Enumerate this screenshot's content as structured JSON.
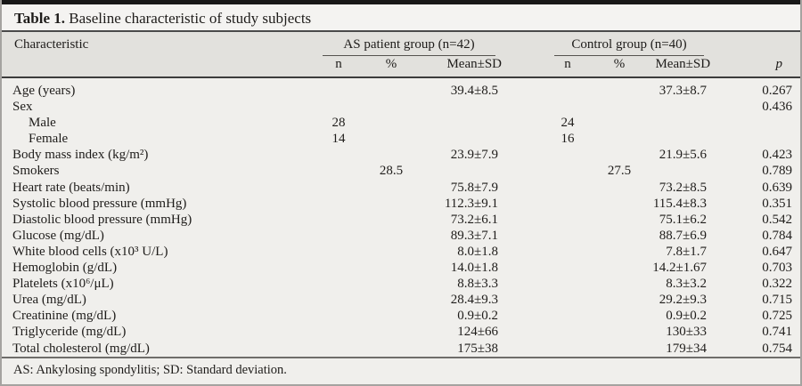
{
  "title": {
    "label": "Table 1.",
    "text": " Baseline characteristic of study subjects"
  },
  "table": {
    "characteristic_header": "Characteristic",
    "groups": [
      {
        "name": "AS patient group (n=42)",
        "subheaders": [
          "n",
          "%",
          "Mean±SD"
        ]
      },
      {
        "name": "Control group (n=40)",
        "subheaders": [
          "n",
          "%",
          "Mean±SD"
        ]
      }
    ],
    "p_header": "p",
    "rows": [
      {
        "label": "Age (years)",
        "indent": false,
        "as_n": "",
        "as_pct": "",
        "as_mean": "39.4±8.5",
        "c_n": "",
        "c_pct": "",
        "c_mean": "37.3±8.7",
        "p": "0.267"
      },
      {
        "label": "Sex",
        "indent": false,
        "as_n": "",
        "as_pct": "",
        "as_mean": "",
        "c_n": "",
        "c_pct": "",
        "c_mean": "",
        "p": "0.436"
      },
      {
        "label": "Male",
        "indent": true,
        "as_n": "28",
        "as_pct": "",
        "as_mean": "",
        "c_n": "24",
        "c_pct": "",
        "c_mean": "",
        "p": ""
      },
      {
        "label": "Female",
        "indent": true,
        "as_n": "14",
        "as_pct": "",
        "as_mean": "",
        "c_n": "16",
        "c_pct": "",
        "c_mean": "",
        "p": ""
      },
      {
        "label": "Body mass index (kg/m²)",
        "indent": false,
        "as_n": "",
        "as_pct": "",
        "as_mean": "23.9±7.9",
        "c_n": "",
        "c_pct": "",
        "c_mean": "21.9±5.6",
        "p": "0.423"
      },
      {
        "label": "Smokers",
        "indent": false,
        "as_n": "",
        "as_pct": "28.5",
        "as_mean": "",
        "c_n": "",
        "c_pct": "27.5",
        "c_mean": "",
        "p": "0.789"
      },
      {
        "label": "Heart rate (beats/min)",
        "indent": false,
        "as_n": "",
        "as_pct": "",
        "as_mean": "75.8±7.9",
        "c_n": "",
        "c_pct": "",
        "c_mean": "73.2±8.5",
        "p": "0.639"
      },
      {
        "label": "Systolic blood pressure (mmHg)",
        "indent": false,
        "as_n": "",
        "as_pct": "",
        "as_mean": "112.3±9.1",
        "c_n": "",
        "c_pct": "",
        "c_mean": "115.4±8.3",
        "p": "0.351"
      },
      {
        "label": "Diastolic blood pressure (mmHg)",
        "indent": false,
        "as_n": "",
        "as_pct": "",
        "as_mean": "73.2±6.1",
        "c_n": "",
        "c_pct": "",
        "c_mean": "75.1±6.2",
        "p": "0.542"
      },
      {
        "label": "Glucose (mg/dL)",
        "indent": false,
        "as_n": "",
        "as_pct": "",
        "as_mean": "89.3±7.1",
        "c_n": "",
        "c_pct": "",
        "c_mean": "88.7±6.9",
        "p": "0.784"
      },
      {
        "label": "White blood cells (x10³ U/L)",
        "indent": false,
        "as_n": "",
        "as_pct": "",
        "as_mean": "8.0±1.8",
        "c_n": "",
        "c_pct": "",
        "c_mean": "7.8±1.7",
        "p": "0.647"
      },
      {
        "label": "Hemoglobin (g/dL)",
        "indent": false,
        "as_n": "",
        "as_pct": "",
        "as_mean": "14.0±1.8",
        "c_n": "",
        "c_pct": "",
        "c_mean": "14.2±1.67",
        "p": "0.703"
      },
      {
        "label": "Platelets (x10⁶/μL)",
        "indent": false,
        "as_n": "",
        "as_pct": "",
        "as_mean": "8.8±3.3",
        "c_n": "",
        "c_pct": "",
        "c_mean": "8.3±3.2",
        "p": "0.322"
      },
      {
        "label": "Urea (mg/dL)",
        "indent": false,
        "as_n": "",
        "as_pct": "",
        "as_mean": "28.4±9.3",
        "c_n": "",
        "c_pct": "",
        "c_mean": "29.2±9.3",
        "p": "0.715"
      },
      {
        "label": "Creatinine (mg/dL)",
        "indent": false,
        "as_n": "",
        "as_pct": "",
        "as_mean": "0.9±0.2",
        "c_n": "",
        "c_pct": "",
        "c_mean": "0.9±0.2",
        "p": "0.725"
      },
      {
        "label": "Triglyceride (mg/dL)",
        "indent": false,
        "as_n": "",
        "as_pct": "",
        "as_mean": "124±66",
        "c_n": "",
        "c_pct": "",
        "c_mean": "130±33",
        "p": "0.741"
      },
      {
        "label": "Total cholesterol (mg/dL)",
        "indent": false,
        "as_n": "",
        "as_pct": "",
        "as_mean": "175±38",
        "c_n": "",
        "c_pct": "",
        "c_mean": "179±34",
        "p": "0.754"
      }
    ]
  },
  "footnote": "AS: Ankylosing spondylitis; SD: Standard deviation.",
  "colors": {
    "top_bar": "#181818",
    "title_bg": "#f4f3f1",
    "header_band": "#e2e1dd",
    "body_bg": "#f0efec",
    "rule_dark": "#4a4a4a",
    "rule_heavy": "#3c3c3c",
    "rule_mid": "#6f6d6a",
    "rule_thin": "#55534f",
    "outer_border": "#a5a3a0",
    "text": "#1e1c1a"
  }
}
